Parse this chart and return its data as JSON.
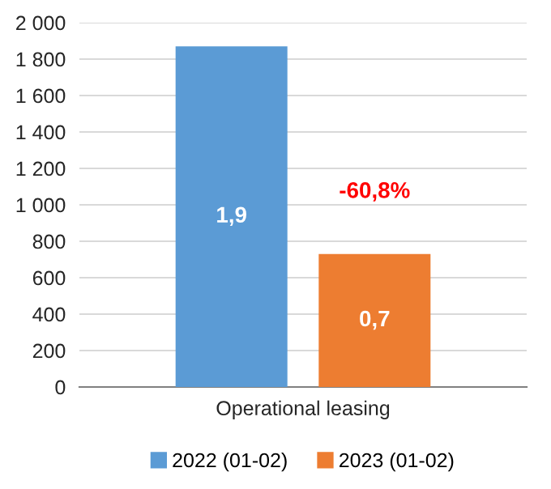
{
  "chart_data": {
    "type": "bar",
    "categories": [
      "Operational leasing"
    ],
    "series": [
      {
        "name": "2022 (01-02)",
        "color": "#5b9bd5",
        "values": [
          1870
        ]
      },
      {
        "name": "2023 (01-02)",
        "color": "#ed7d31",
        "values": [
          730
        ]
      }
    ],
    "annotations": [
      "1,9",
      "0,7",
      "-60,8%"
    ],
    "ylim": [
      0,
      2000
    ],
    "yticks": [
      0,
      200,
      400,
      600,
      800,
      {
        "value": 1000,
        "label": "1 000"
      },
      {
        "value": 1200,
        "label": "1 200"
      },
      {
        "value": 1400,
        "label": "1 400"
      },
      {
        "value": 1600,
        "label": "1 600"
      },
      {
        "value": 1800,
        "label": "1 800"
      },
      {
        "value": 2000,
        "label": "2 000"
      }
    ],
    "grid": "y",
    "legend": "bottom"
  }
}
